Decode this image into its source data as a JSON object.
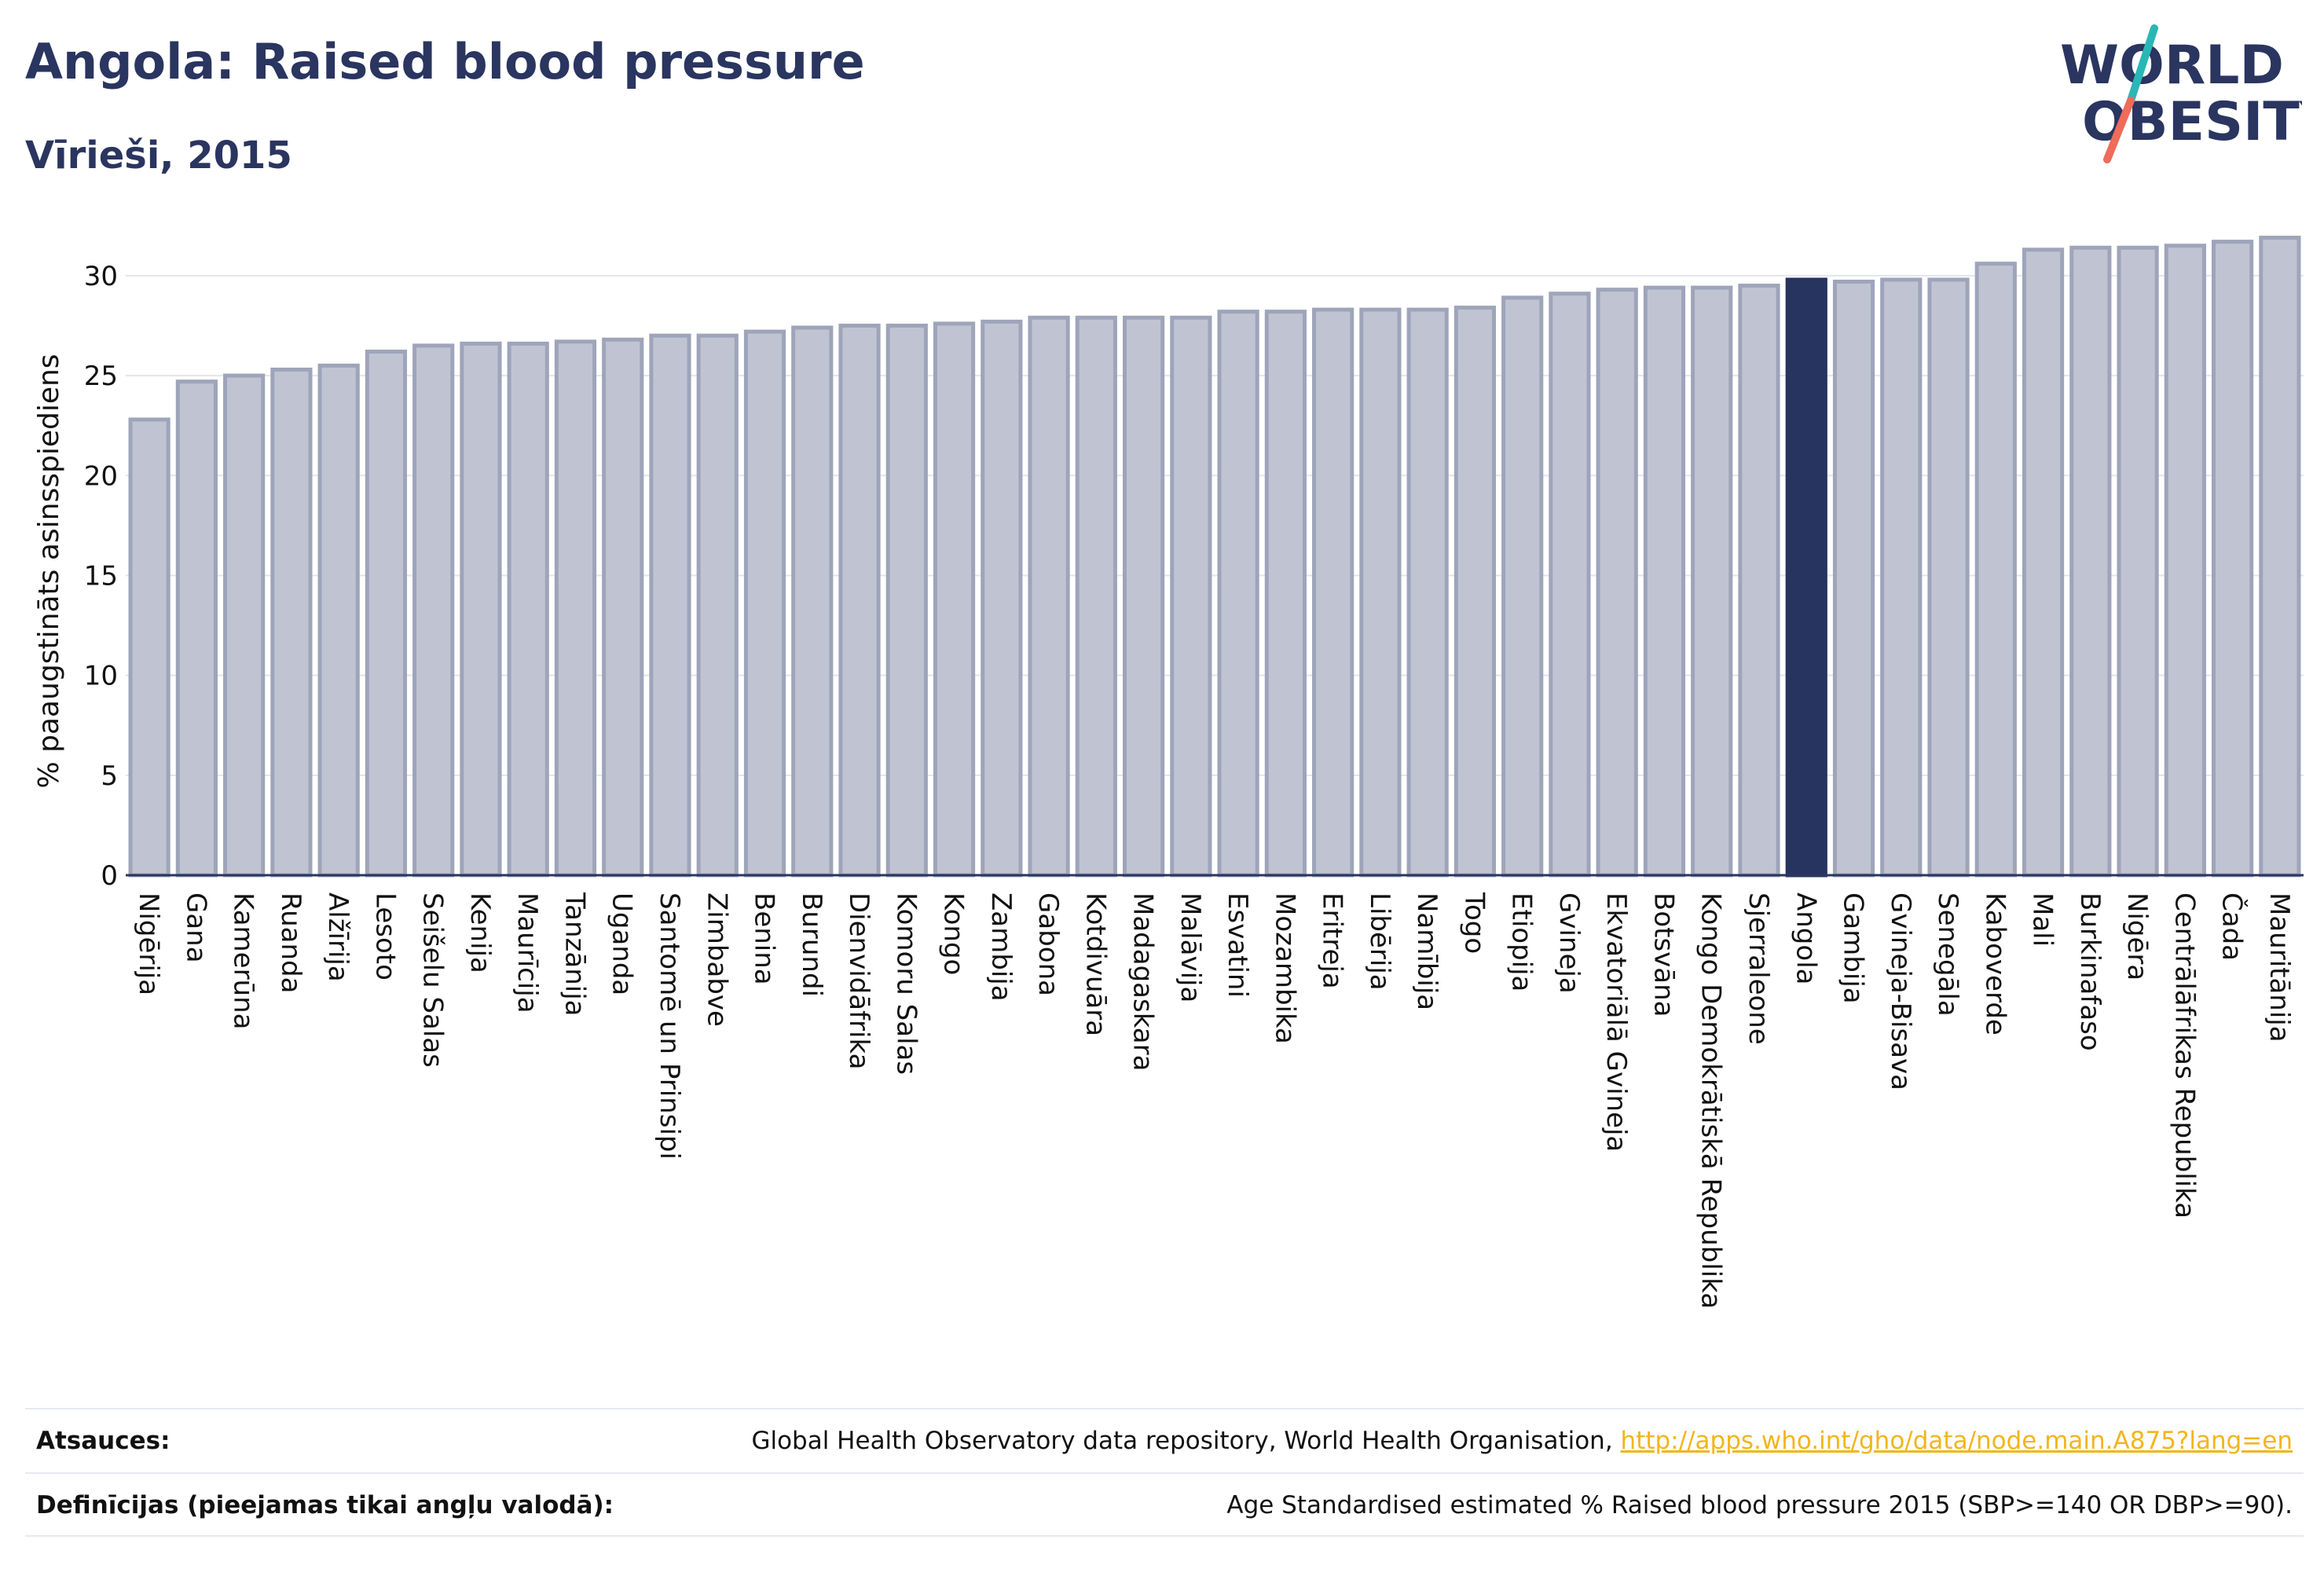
{
  "header": {
    "title": "Angola: Raised blood pressure",
    "subtitle": "Vīrieši, 2015"
  },
  "logo": {
    "line1": "WORLD",
    "line2": "OBESITY"
  },
  "colors": {
    "bar": "#c0c4d2",
    "bar_outline": "#9ea4ba",
    "highlight": "#283460",
    "text": "#2a3560",
    "grid": "#e3e5ec"
  },
  "chart_data": {
    "type": "bar",
    "ylabel": "% paaugstināts asinsspiediens",
    "ylim": [
      0,
      32
    ],
    "yticks": [
      0,
      5,
      10,
      15,
      20,
      25,
      30
    ],
    "grid": true,
    "highlight": "Angola",
    "categories": [
      "Nigērija",
      "Gana",
      "Kamerūna",
      "Ruanda",
      "Alžīrija",
      "Lesoto",
      "Seišelu Salas",
      "Kenija",
      "Maurīcija",
      "Tanzānija",
      "Uganda",
      "Santomē un Prinsipi",
      "Zimbabve",
      "Benina",
      "Burundi",
      "Dienvidāfrika",
      "Komoru Salas",
      "Kongo",
      "Zambija",
      "Gabona",
      "Kotdivuāra",
      "Madagaskara",
      "Malāvija",
      "Esvatini",
      "Mozambika",
      "Eritreja",
      "Libērija",
      "Namībija",
      "Togo",
      "Etiopija",
      "Gvineja",
      "Ekvatoriālā Gvineja",
      "Botsvāna",
      "Kongo Demokrātiskā Republika",
      "Sjerraleone",
      "Angola",
      "Gambija",
      "Gvineja-Bisava",
      "Senegāla",
      "Kaboverde",
      "Mali",
      "Burkinafaso",
      "Nigēra",
      "Centrālāfrikas Republika",
      "Čada",
      "Mauritānija"
    ],
    "values": [
      22.8,
      24.7,
      25.0,
      25.3,
      25.5,
      26.2,
      26.5,
      26.6,
      26.6,
      26.7,
      26.8,
      27.0,
      27.0,
      27.2,
      27.4,
      27.5,
      27.5,
      27.6,
      27.7,
      27.9,
      27.9,
      27.9,
      27.9,
      28.2,
      28.2,
      28.3,
      28.3,
      28.3,
      28.4,
      28.9,
      29.1,
      29.3,
      29.4,
      29.4,
      29.5,
      29.8,
      29.7,
      29.8,
      29.8,
      30.6,
      31.3,
      31.4,
      31.4,
      31.5,
      31.7,
      31.9
    ]
  },
  "footer": {
    "sources_label": "Atsauces:",
    "sources_text": "Global Health Observatory data repository, World Health Organisation, ",
    "sources_link": "http://apps.who.int/gho/data/node.main.A875?lang=en",
    "definitions_label": "Definīcijas (pieejamas tikai angļu valodā):",
    "definitions_text": "Age Standardised estimated % Raised blood pressure 2015 (SBP>=140 OR DBP>=90)."
  }
}
